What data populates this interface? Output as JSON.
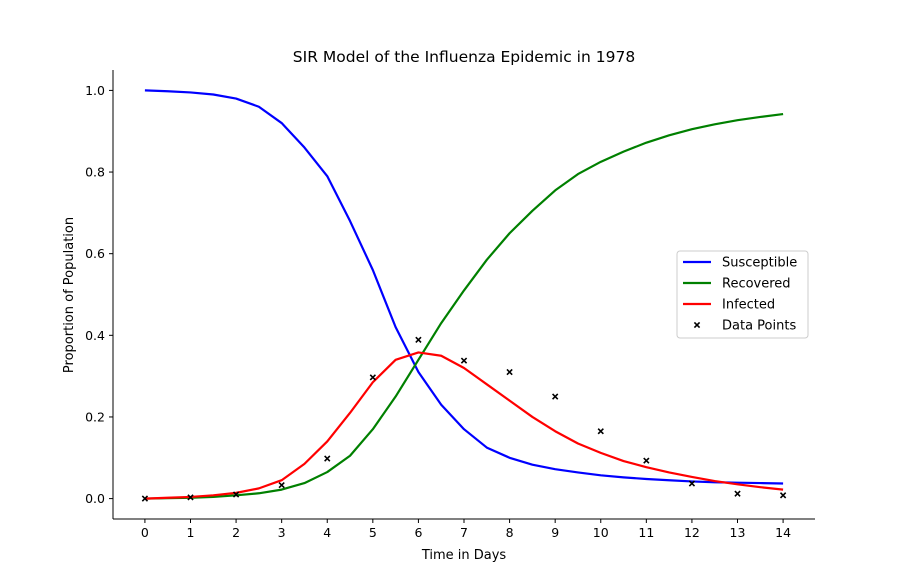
{
  "chart_data": {
    "type": "line",
    "title": "SIR Model of the Influenza Epidemic in 1978",
    "xlabel": "Time in Days",
    "ylabel": "Proportion of Population",
    "xlim": [
      -0.7,
      14.7
    ],
    "ylim": [
      -0.05,
      1.05
    ],
    "xticks": [
      "0",
      "1",
      "2",
      "3",
      "4",
      "5",
      "6",
      "7",
      "8",
      "9",
      "10",
      "11",
      "12",
      "13",
      "14"
    ],
    "yticks": [
      "0.0",
      "0.2",
      "0.4",
      "0.6",
      "0.8",
      "1.0"
    ],
    "x": [
      0,
      0.5,
      1,
      1.5,
      2,
      2.5,
      3,
      3.5,
      4,
      4.5,
      5,
      5.5,
      6,
      6.5,
      7,
      7.5,
      8,
      8.5,
      9,
      9.5,
      10,
      10.5,
      11,
      11.5,
      12,
      12.5,
      13,
      13.5,
      14
    ],
    "series": [
      {
        "name": "Susceptible",
        "color": "#0000ff",
        "values": [
          1.0,
          0.998,
          0.995,
          0.99,
          0.98,
          0.96,
          0.92,
          0.86,
          0.79,
          0.68,
          0.56,
          0.42,
          0.31,
          0.23,
          0.17,
          0.125,
          0.1,
          0.083,
          0.072,
          0.064,
          0.057,
          0.052,
          0.048,
          0.045,
          0.042,
          0.04,
          0.039,
          0.038,
          0.037
        ]
      },
      {
        "name": "Recovered",
        "color": "#008000",
        "values": [
          0.0,
          0.001,
          0.002,
          0.004,
          0.008,
          0.013,
          0.022,
          0.038,
          0.065,
          0.105,
          0.17,
          0.25,
          0.34,
          0.43,
          0.51,
          0.585,
          0.65,
          0.705,
          0.755,
          0.795,
          0.825,
          0.85,
          0.872,
          0.89,
          0.905,
          0.917,
          0.927,
          0.935,
          0.942
        ]
      },
      {
        "name": "Infected",
        "color": "#ff0000",
        "values": [
          0.0,
          0.002,
          0.004,
          0.008,
          0.014,
          0.025,
          0.045,
          0.085,
          0.14,
          0.21,
          0.285,
          0.34,
          0.358,
          0.35,
          0.32,
          0.28,
          0.24,
          0.2,
          0.165,
          0.135,
          0.112,
          0.092,
          0.077,
          0.064,
          0.053,
          0.043,
          0.035,
          0.028,
          0.022
        ]
      }
    ],
    "scatter": {
      "name": "Data Points",
      "color": "#000000",
      "x": [
        0,
        1,
        2,
        3,
        4,
        5,
        6,
        7,
        8,
        9,
        10,
        11,
        12,
        13,
        14
      ],
      "y": [
        0.0,
        0.003,
        0.01,
        0.033,
        0.098,
        0.297,
        0.389,
        0.338,
        0.31,
        0.25,
        0.165,
        0.093,
        0.037,
        0.012,
        0.008
      ]
    },
    "legend": "center-right",
    "grid": false
  }
}
